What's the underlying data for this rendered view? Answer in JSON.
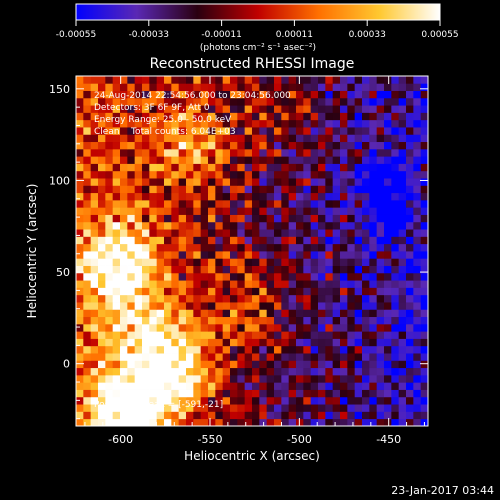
{
  "chart_data": {
    "type": "heatmap",
    "title": "Reconstructed RHESSI Image",
    "xlabel": "Heliocentric X (arcsec)",
    "ylabel": "Heliocentric Y (arcsec)",
    "xlim": [
      -625,
      -428
    ],
    "ylim": [
      -34,
      157
    ],
    "xticks": [
      -600,
      -550,
      -500,
      -450
    ],
    "xtick_labels": [
      "-600",
      "-550",
      "-500",
      "-450"
    ],
    "yticks": [
      0,
      50,
      100,
      150
    ],
    "ytick_labels": [
      "0",
      "50",
      "100",
      "150"
    ],
    "grid": false,
    "colorbar": {
      "range": [
        -0.00055,
        0.00055
      ],
      "ticks": [
        -0.00055,
        -0.00033,
        -0.00011,
        0.00011,
        0.00033,
        0.00055
      ],
      "tick_labels": [
        "-0.00055",
        "-0.00033",
        "-0.00011",
        "0.00011",
        "0.00033",
        "0.00055"
      ],
      "unit": "(photons cm⁻² s⁻¹ asec⁻²)",
      "colors": [
        "#0000ff",
        "#5a28b4",
        "#2a0010",
        "#c00000",
        "#ff7000",
        "#ffc830",
        "#ffffff"
      ]
    },
    "annotations": {
      "time_range": "24-Aug-2014 22:54:56.000 to 23:04:56.000",
      "detectors": "Detectors: 3F 6F 9F, Att 0",
      "energy_range": "Energy Range: 25.0 - 50.0 keV",
      "method_counts": "Clean    Total counts: 6.04E+03",
      "peak_position": "Position of Peak = [-591,-21]"
    },
    "peak": {
      "x": -591,
      "y": -21
    },
    "grid_size": [
      48,
      48
    ],
    "bright_regions": [
      {
        "x": -600,
        "y": 55,
        "level": 0.95
      },
      {
        "x": -595,
        "y": -25,
        "level": 1.0
      },
      {
        "x": -570,
        "y": -5,
        "level": 0.9
      },
      {
        "x": -585,
        "y": 20,
        "level": 0.75
      },
      {
        "x": -560,
        "y": 120,
        "level": 0.7
      },
      {
        "x": -530,
        "y": 30,
        "level": 0.6
      },
      {
        "x": -510,
        "y": 140,
        "level": 0.55
      }
    ],
    "dim_regions": [
      {
        "x": -455,
        "y": 100,
        "level": 0.05
      },
      {
        "x": -450,
        "y": 80,
        "level": 0.15
      }
    ]
  },
  "footer": {
    "timestamp": "23-Jan-2017 03:44"
  }
}
